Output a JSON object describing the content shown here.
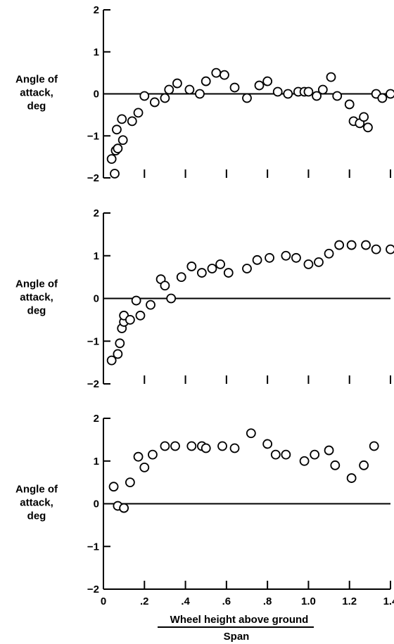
{
  "chart_data": [
    {
      "type": "scatter",
      "title": "",
      "ylabel_lines": [
        "Angle of",
        "attack,",
        "deg"
      ],
      "ylim": [
        -2,
        2
      ],
      "yticks": [
        "2",
        "1",
        "0",
        "−1",
        "−2"
      ],
      "xlim": [
        0,
        1.4
      ],
      "grid": false,
      "x": [
        0.04,
        0.055,
        0.06,
        0.065,
        0.07,
        0.09,
        0.095,
        0.14,
        0.17,
        0.2,
        0.25,
        0.3,
        0.32,
        0.36,
        0.42,
        0.47,
        0.5,
        0.55,
        0.59,
        0.64,
        0.7,
        0.76,
        0.8,
        0.85,
        0.9,
        0.95,
        0.98,
        1.0,
        1.04,
        1.07,
        1.11,
        1.14,
        1.2,
        1.22,
        1.25,
        1.27,
        1.29,
        1.33,
        1.36,
        1.4
      ],
      "y": [
        -1.55,
        -1.9,
        -1.35,
        -0.85,
        -1.3,
        -0.6,
        -1.1,
        -0.65,
        -0.45,
        -0.05,
        -0.2,
        -0.1,
        0.1,
        0.25,
        0.1,
        0.0,
        0.3,
        0.5,
        0.45,
        0.15,
        -0.1,
        0.2,
        0.3,
        0.05,
        0.0,
        0.05,
        0.05,
        0.05,
        -0.05,
        0.1,
        0.4,
        -0.05,
        -0.25,
        -0.65,
        -0.7,
        -0.55,
        -0.8,
        0.0,
        -0.1,
        0.0
      ]
    },
    {
      "type": "scatter",
      "title": "",
      "ylabel_lines": [
        "Angle of",
        "attack,",
        "deg"
      ],
      "ylim": [
        -2,
        2
      ],
      "yticks": [
        "2",
        "1",
        "0",
        "−1",
        "−2"
      ],
      "xlim": [
        0,
        1.4
      ],
      "grid": false,
      "x": [
        0.04,
        0.07,
        0.08,
        0.09,
        0.1,
        0.1,
        0.13,
        0.16,
        0.18,
        0.23,
        0.28,
        0.3,
        0.33,
        0.38,
        0.43,
        0.48,
        0.53,
        0.57,
        0.61,
        0.7,
        0.75,
        0.81,
        0.89,
        0.94,
        1.0,
        1.05,
        1.1,
        1.15,
        1.21,
        1.28,
        1.33,
        1.4
      ],
      "y": [
        -1.45,
        -1.3,
        -1.05,
        -0.7,
        -0.55,
        -0.4,
        -0.5,
        -0.05,
        -0.4,
        -0.15,
        0.45,
        0.3,
        0.0,
        0.5,
        0.75,
        0.6,
        0.7,
        0.8,
        0.6,
        0.7,
        0.9,
        0.95,
        1.0,
        0.95,
        0.8,
        0.85,
        1.05,
        1.25,
        1.25,
        1.25,
        1.15,
        1.15
      ]
    },
    {
      "type": "scatter",
      "title": "",
      "ylabel_lines": [
        "Angle of",
        "attack,",
        "deg"
      ],
      "ylim": [
        -2,
        2
      ],
      "yticks": [
        "2",
        "1",
        "0",
        "−1",
        "−2"
      ],
      "xlim": [
        0,
        1.4
      ],
      "grid": false,
      "x": [
        0.05,
        0.07,
        0.1,
        0.13,
        0.17,
        0.2,
        0.24,
        0.3,
        0.35,
        0.43,
        0.48,
        0.5,
        0.58,
        0.64,
        0.72,
        0.8,
        0.84,
        0.89,
        0.98,
        1.03,
        1.1,
        1.13,
        1.21,
        1.27,
        1.32
      ],
      "y": [
        0.4,
        -0.05,
        -0.1,
        0.5,
        1.1,
        0.85,
        1.15,
        1.35,
        1.35,
        1.35,
        1.35,
        1.3,
        1.35,
        1.3,
        1.65,
        1.4,
        1.15,
        1.15,
        1.0,
        1.15,
        1.25,
        0.9,
        0.6,
        0.9,
        1.35
      ]
    }
  ],
  "x_axis": {
    "tick_labels": [
      "0",
      ".2",
      ".4",
      ".6",
      ".8",
      "1.0",
      "1.2",
      "1.4"
    ],
    "tick_values": [
      0,
      0.2,
      0.4,
      0.6,
      0.8,
      1.0,
      1.2,
      1.4
    ],
    "label_numerator": "Wheel height above ground",
    "label_denominator": "Span"
  }
}
